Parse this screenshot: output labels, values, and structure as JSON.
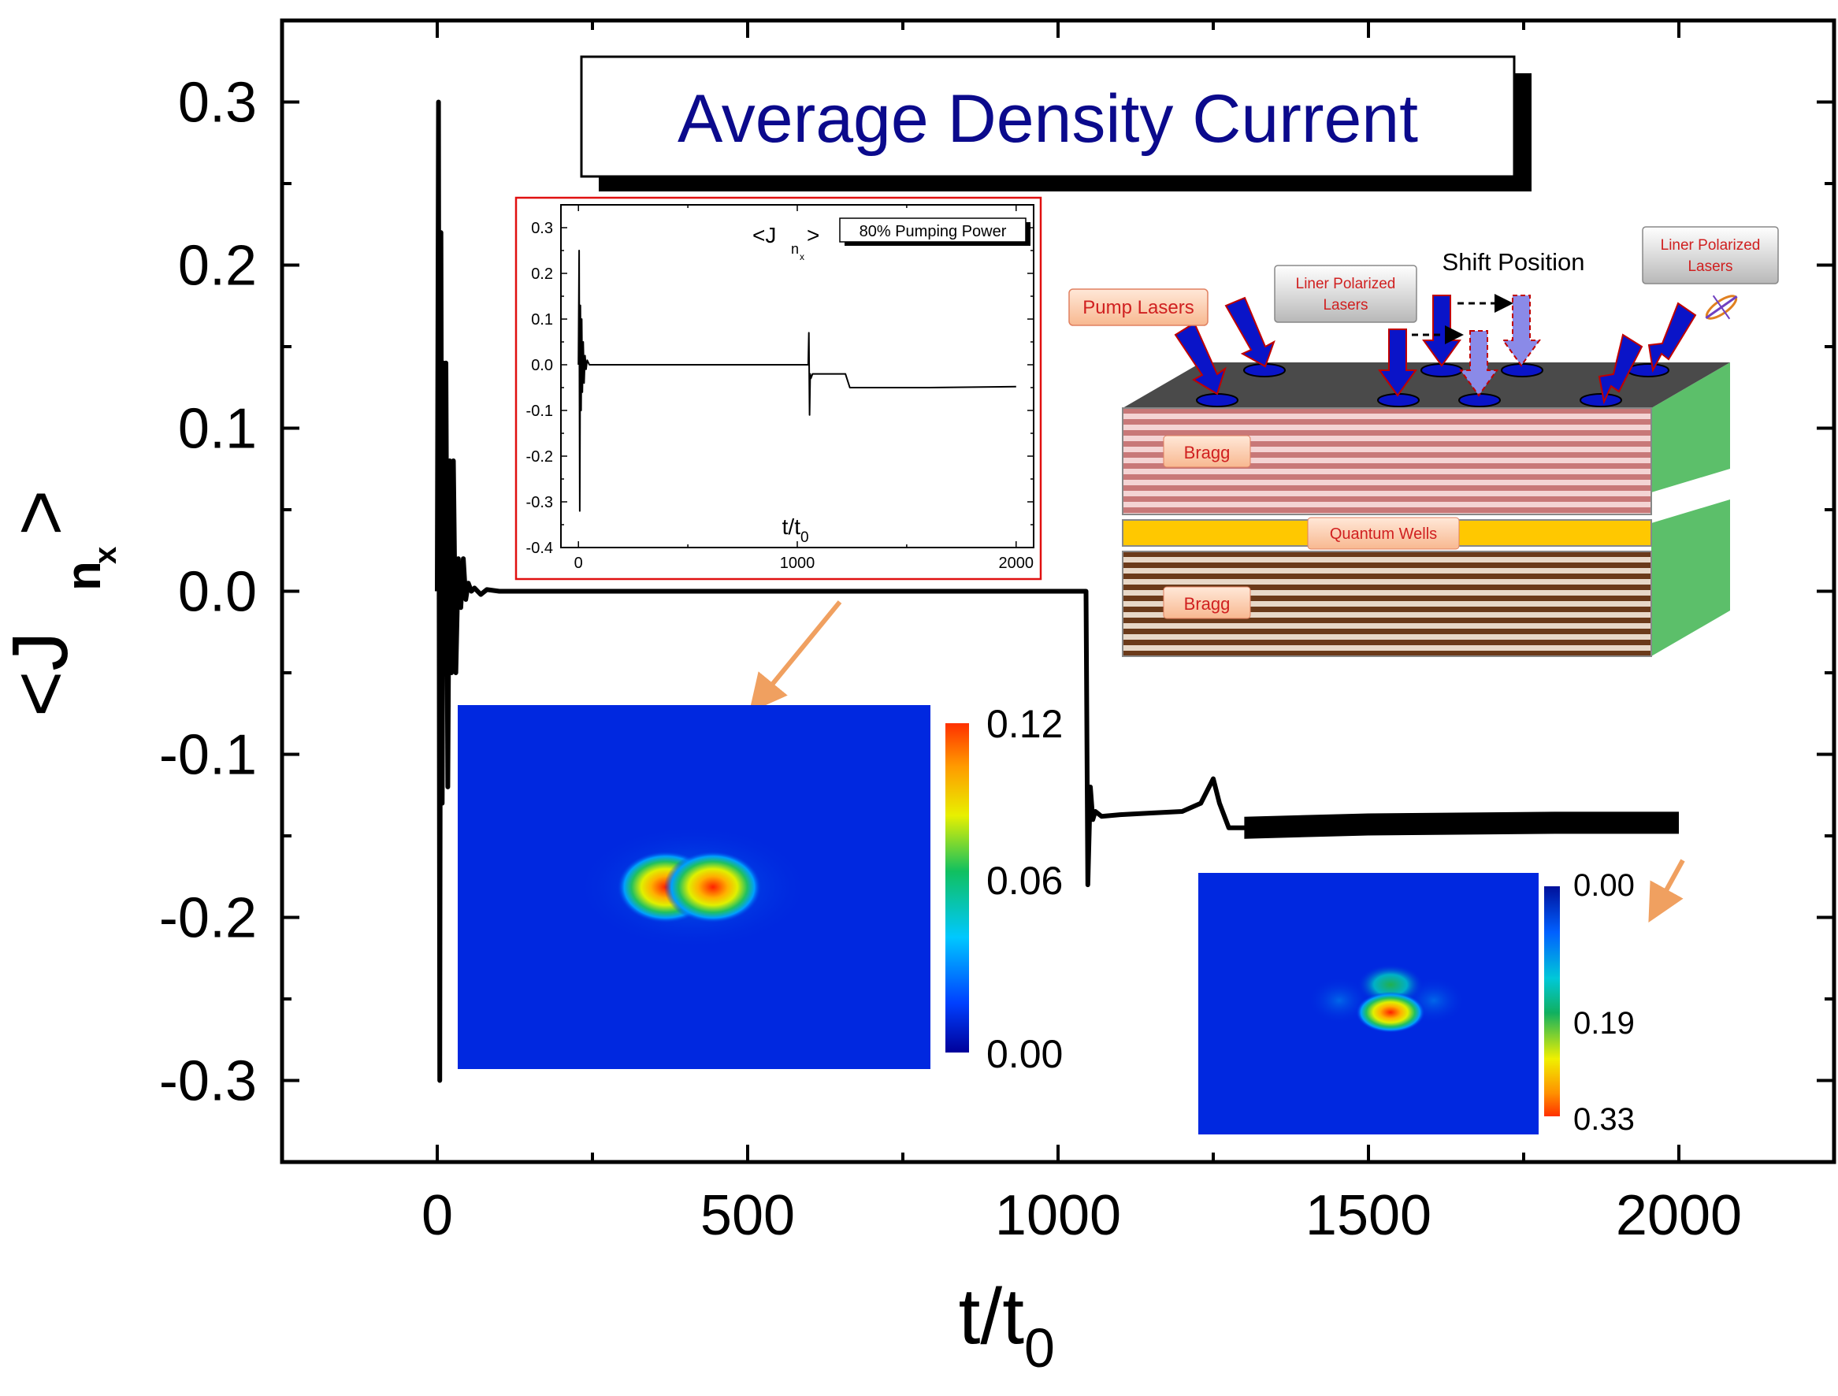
{
  "title": "Average Density Current",
  "chart_data": [
    {
      "type": "line",
      "xlabel": "t/t",
      "xlabel_sub": "0",
      "ylabel": "<J",
      "ylabel_sub": "n",
      "ylabel_subsub": "x",
      "ylabel_close": ">",
      "xlim": [
        -250,
        2250
      ],
      "ylim": [
        -0.35,
        0.35
      ],
      "x_ticks": [
        0,
        500,
        1000,
        1500,
        2000
      ],
      "x_tick_labels": [
        "0",
        "500",
        "1000",
        "1500",
        "2000"
      ],
      "y_ticks": [
        0.3,
        0.2,
        0.1,
        0.0,
        -0.1,
        -0.2,
        -0.3
      ],
      "y_tick_labels": [
        "0.3",
        "0.2",
        "0.1",
        "0.0",
        "-0.1",
        "-0.2",
        "-0.3"
      ],
      "series": [
        {
          "color": "#000000",
          "x": [
            0,
            2,
            4,
            6,
            8,
            10,
            12,
            14,
            17,
            20,
            23,
            26,
            30,
            34,
            38,
            42,
            46,
            50,
            55,
            60,
            70,
            80,
            100,
            130,
            200,
            500,
            800,
            1045,
            1048,
            1052,
            1056,
            1060,
            1070,
            1100,
            1150,
            1200,
            1230,
            1250,
            1260,
            1275,
            1300,
            1500,
            1800,
            2000
          ],
          "y": [
            0.0,
            0.3,
            -0.3,
            0.22,
            -0.13,
            0.14,
            -0.05,
            0.14,
            -0.12,
            0.08,
            -0.05,
            0.08,
            -0.05,
            0.02,
            -0.01,
            0.02,
            -0.005,
            0.005,
            0.0,
            0.002,
            -0.002,
            0.001,
            0.0,
            0.0,
            0.0,
            0.0,
            0.0,
            0.0,
            -0.18,
            -0.12,
            -0.14,
            -0.135,
            -0.138,
            -0.137,
            -0.136,
            -0.135,
            -0.13,
            -0.115,
            -0.13,
            -0.145,
            -0.145,
            -0.143,
            -0.142,
            -0.142
          ]
        }
      ]
    },
    {
      "type": "line",
      "legend": "80% Pumping Power",
      "label": "<J",
      "label_sub": "n",
      "label_subsub": "x",
      "label_close": ">",
      "xlabel": "t/t",
      "xlabel_sub": "0",
      "xlim": [
        -80,
        2080
      ],
      "ylim": [
        -0.4,
        0.35
      ],
      "x_ticks": [
        0,
        1000,
        2000
      ],
      "x_tick_labels": [
        "0",
        "1000",
        "2000"
      ],
      "y_ticks": [
        0.3,
        0.2,
        0.1,
        0.0,
        -0.1,
        -0.2,
        -0.3,
        -0.4
      ],
      "y_tick_labels": [
        "0.3",
        "0.2",
        "0.1",
        "0.0",
        "-0.1",
        "-0.2",
        "-0.3",
        "-0.4"
      ],
      "series": [
        {
          "color": "#000000",
          "x": [
            0,
            3,
            6,
            9,
            12,
            15,
            18,
            22,
            26,
            30,
            35,
            40,
            50,
            60,
            80,
            200,
            500,
            1000,
            1050,
            1053,
            1056,
            1059,
            1062,
            1070,
            1100,
            1150,
            1200,
            1220,
            1240,
            1300,
            1600,
            2000
          ],
          "y": [
            0.0,
            0.25,
            -0.32,
            0.13,
            -0.1,
            0.1,
            -0.06,
            0.05,
            -0.04,
            0.02,
            -0.01,
            0.01,
            0.0,
            0.0,
            0.0,
            0.0,
            0.0,
            0.0,
            0.0,
            0.07,
            -0.11,
            -0.02,
            -0.03,
            -0.02,
            -0.02,
            -0.02,
            -0.02,
            -0.02,
            -0.05,
            -0.05,
            -0.05,
            -0.048
          ]
        }
      ]
    }
  ],
  "heatmap_left": {
    "colorbar_labels": [
      "0.12",
      "0.06",
      "0.00"
    ]
  },
  "heatmap_right": {
    "colorbar_labels": [
      "0.00",
      "0.19",
      "0.33"
    ]
  },
  "schematic": {
    "pump_lasers": "Pump Lasers",
    "liner_polarized_1": [
      "Liner Polarized",
      "Lasers"
    ],
    "liner_polarized_2": [
      "Liner Polarized",
      "Lasers"
    ],
    "shift_position": "Shift Position",
    "bragg_top": "Bragg",
    "quantum_wells": "Quantum Wells",
    "bragg_bottom": "Bragg"
  },
  "colors": {
    "title_text": "#0b0a8c",
    "inset_border": "#e01010",
    "arrow": "#f0a060",
    "laser_arrow": "#0a14c8",
    "bragg_top": "#d99a9a",
    "bragg_bottom": "#6b4a2a",
    "quantum_wells": "#ffc800",
    "side_face": "#5cbf6a",
    "top_face": "#555555"
  }
}
